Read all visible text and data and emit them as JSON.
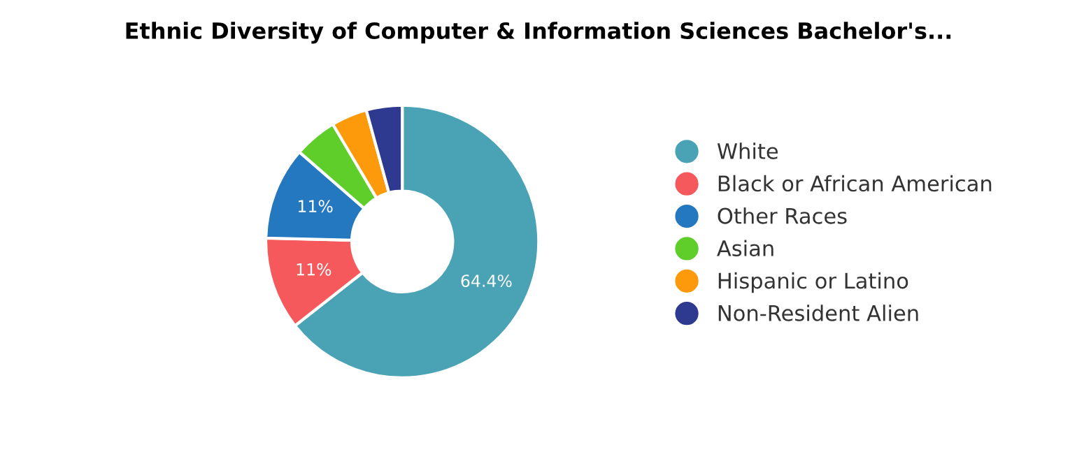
{
  "chart_data": {
    "type": "donut",
    "title": "Ethnic Diversity of Computer & Information Sciences Bachelor's...",
    "categories": [
      "White",
      "Black or African American",
      "Other Races",
      "Asian",
      "Hispanic or Latino",
      "Non-Resident Alien"
    ],
    "values": [
      64.4,
      11,
      11,
      5.1,
      4.25,
      4.25
    ],
    "colors": [
      "#4aa3b5",
      "#f5595b",
      "#2478c0",
      "#5fce2a",
      "#fd9a0c",
      "#2e3a8f"
    ],
    "value_labels": [
      "64.4%",
      "11%",
      "11%",
      null,
      null,
      null
    ],
    "legend": "right"
  }
}
